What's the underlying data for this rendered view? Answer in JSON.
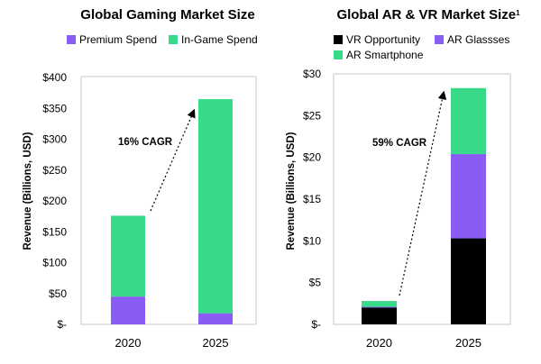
{
  "colors": {
    "premium": "#8a5cf6",
    "ingame": "#39d98a",
    "vr": "#000000",
    "arglasses": "#8a5cf6",
    "arsmartphone": "#39d98a"
  },
  "chart_data": [
    {
      "type": "bar",
      "stacked": true,
      "title": "Global Gaming Market Size",
      "ylabel": "Revenue (Billions, USD)",
      "xlabel": "",
      "categories": [
        "2020",
        "2025"
      ],
      "ylim": [
        0,
        400
      ],
      "yticks": [
        0,
        50,
        100,
        150,
        200,
        250,
        300,
        350,
        400
      ],
      "ytick_labels": [
        "$-",
        "$50",
        "$100",
        "$150",
        "$200",
        "$250",
        "$300",
        "$350",
        "$400"
      ],
      "series": [
        {
          "name": "Premium Spend",
          "color": "#8a5cf6",
          "values": [
            45,
            18
          ]
        },
        {
          "name": "In-Game Spend",
          "color": "#39d98a",
          "values": [
            131,
            347
          ]
        }
      ],
      "annotation": "16% CAGR",
      "legend_position": "top"
    },
    {
      "type": "bar",
      "stacked": true,
      "title": "Global AR & VR Market Size",
      "title_superscript": "1",
      "ylabel": "Revenue (Billions, USD)",
      "xlabel": "",
      "categories": [
        "2020",
        "2025"
      ],
      "ylim": [
        0,
        30
      ],
      "yticks": [
        0,
        5,
        10,
        15,
        20,
        25,
        30
      ],
      "ytick_labels": [
        "$-",
        "$5",
        "$10",
        "$15",
        "$20",
        "$25",
        "$30"
      ],
      "series": [
        {
          "name": "VR Opportunity",
          "color": "#000000",
          "values": [
            2.0,
            10.3
          ]
        },
        {
          "name": "AR Glassses",
          "color": "#8a5cf6",
          "values": [
            0.1,
            10.1
          ]
        },
        {
          "name": "AR Smartphone",
          "color": "#39d98a",
          "values": [
            0.7,
            7.9
          ]
        }
      ],
      "annotation": "59% CAGR",
      "legend_position": "top"
    }
  ]
}
